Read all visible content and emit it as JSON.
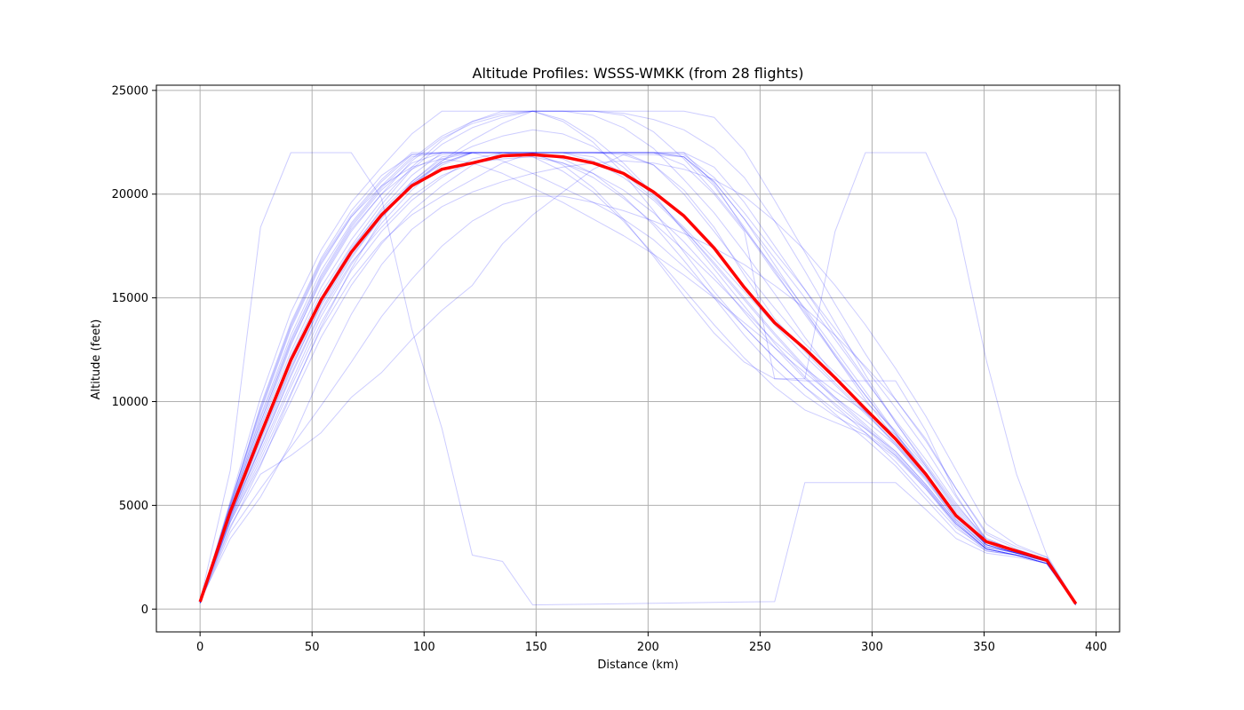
{
  "chart_data": {
    "type": "line",
    "title": "Altitude Profiles: WSSS-WMKK (from 28 flights)",
    "xlabel": "Distance (km)",
    "ylabel": "Altitude (feet)",
    "xlim": [
      -19.5,
      410.5
    ],
    "ylim": [
      -1100,
      25250
    ],
    "xticks": [
      0,
      50,
      100,
      150,
      200,
      250,
      300,
      350,
      400
    ],
    "yticks": [
      0,
      5000,
      10000,
      15000,
      20000,
      25000
    ],
    "grid": true,
    "colors": {
      "flights": "#0000ff",
      "mean": "#ff0000",
      "grid": "#b0b0b0"
    },
    "x": [
      0,
      13.5,
      27,
      40.5,
      54,
      67.5,
      81,
      94.5,
      108,
      121.5,
      135,
      148.5,
      162,
      175.5,
      189,
      202.5,
      216,
      229.5,
      243,
      256.5,
      270,
      283.5,
      297,
      310.5,
      324,
      337.5,
      351,
      364.5,
      378,
      391
    ],
    "mean": [
      350,
      4700,
      8400,
      12000,
      14900,
      17200,
      19000,
      20400,
      21200,
      21500,
      21850,
      21900,
      21800,
      21500,
      21000,
      20100,
      18950,
      17400,
      15500,
      13800,
      12550,
      11150,
      9650,
      8200,
      6500,
      4500,
      3250,
      2800,
      2350,
      250
    ],
    "series": [
      [
        300,
        5000,
        9800,
        13800,
        16900,
        19200,
        20900,
        21900,
        22000,
        22000,
        22000,
        22000,
        22000,
        22000,
        21900,
        21400,
        20200,
        18400,
        16100,
        14000,
        12400,
        10900,
        9500,
        8000,
        6300,
        4300,
        3000,
        2700,
        2400,
        300
      ],
      [
        400,
        4500,
        7800,
        11200,
        14300,
        16700,
        18400,
        19900,
        20900,
        21500,
        21700,
        21800,
        21500,
        21000,
        20200,
        19100,
        17700,
        16100,
        14300,
        12600,
        11100,
        9900,
        8700,
        7400,
        5800,
        4000,
        2800,
        2600,
        2300,
        300
      ],
      [
        300,
        4200,
        7200,
        10400,
        13500,
        15900,
        17700,
        19000,
        19900,
        20700,
        21500,
        22000,
        22000,
        22000,
        22000,
        22000,
        22000,
        20500,
        18300,
        16200,
        14300,
        12300,
        10300,
        8500,
        6600,
        4600,
        3100,
        2700,
        2300,
        200
      ],
      [
        300,
        5200,
        10200,
        14300,
        17300,
        19600,
        21300,
        22900,
        24000,
        24000,
        24000,
        24000,
        24000,
        24000,
        23900,
        23600,
        23100,
        22200,
        20800,
        18700,
        16300,
        13800,
        11300,
        9000,
        7000,
        5000,
        3400,
        2800,
        2400,
        300
      ],
      [
        400,
        4800,
        9000,
        12800,
        15800,
        18200,
        20000,
        21600,
        22700,
        23400,
        23800,
        24000,
        24000,
        23800,
        23200,
        22200,
        20700,
        19100,
        17200,
        15200,
        13100,
        11200,
        9500,
        7900,
        6200,
        4300,
        3000,
        2700,
        2300,
        200
      ],
      [
        300,
        4600,
        8500,
        12200,
        15200,
        17500,
        19500,
        21200,
        22400,
        23200,
        23700,
        24000,
        23600,
        22700,
        21500,
        20000,
        18200,
        16400,
        14600,
        12800,
        11200,
        9800,
        8500,
        7100,
        5500,
        3900,
        2900,
        2600,
        2200,
        300
      ],
      [
        350,
        4300,
        7600,
        10900,
        14100,
        16600,
        18600,
        20200,
        21400,
        22000,
        22000,
        22000,
        22000,
        22000,
        22000,
        22000,
        21800,
        20600,
        18800,
        16900,
        15000,
        13000,
        11000,
        9100,
        7200,
        5100,
        3300,
        2800,
        2400,
        250
      ],
      [
        300,
        5100,
        9700,
        13700,
        16800,
        19000,
        20700,
        22000,
        22000,
        22000,
        22000,
        22000,
        22000,
        22000,
        22000,
        21400,
        20000,
        18200,
        16300,
        14500,
        12800,
        11400,
        10000,
        8600,
        6900,
        4900,
        3300,
        2800,
        2400,
        300
      ],
      [
        400,
        4700,
        8700,
        12400,
        15500,
        17800,
        19700,
        21300,
        22600,
        23500,
        24000,
        24000,
        24000,
        24000,
        24000,
        24000,
        24000,
        23700,
        22100,
        19700,
        17200,
        14700,
        12300,
        10100,
        8100,
        5800,
        3700,
        3000,
        2500,
        300
      ],
      [
        300,
        4400,
        7900,
        11500,
        14700,
        17100,
        19000,
        20500,
        21600,
        22300,
        22800,
        23100,
        22900,
        22300,
        21300,
        19900,
        18300,
        16600,
        14900,
        13200,
        11600,
        10100,
        8800,
        7500,
        5900,
        4100,
        2900,
        2600,
        2200,
        200
      ],
      [
        350,
        4900,
        9300,
        13200,
        16300,
        18600,
        20400,
        21800,
        22000,
        22000,
        22000,
        22000,
        21700,
        21000,
        19900,
        18500,
        16800,
        15000,
        13200,
        11600,
        10300,
        9300,
        8500,
        7400,
        5900,
        4100,
        2900,
        2600,
        2200,
        300
      ],
      [
        300,
        4600,
        8300,
        11900,
        14900,
        17300,
        19300,
        20900,
        22000,
        22000,
        22000,
        22000,
        22000,
        21800,
        21000,
        19800,
        18400,
        16900,
        15300,
        13700,
        12200,
        10800,
        9400,
        8000,
        6400,
        4500,
        3100,
        2700,
        2300,
        300
      ],
      [
        400,
        4500,
        8100,
        11600,
        14600,
        17000,
        18900,
        20400,
        21600,
        22600,
        23400,
        24000,
        24000,
        24000,
        23800,
        23000,
        21700,
        20100,
        18300,
        16400,
        14500,
        12500,
        10500,
        8500,
        6500,
        4500,
        3100,
        2700,
        2300,
        200
      ],
      [
        300,
        5000,
        9500,
        13500,
        16600,
        18900,
        20600,
        21900,
        22000,
        22000,
        22000,
        22000,
        21400,
        20300,
        18800,
        17000,
        15100,
        13300,
        11900,
        11100,
        11000,
        11000,
        11000,
        11000,
        8600,
        5500,
        3300,
        2800,
        2400,
        300
      ],
      [
        350,
        4700,
        8800,
        12700,
        15900,
        18300,
        20000,
        21200,
        21900,
        22000,
        21600,
        21000,
        20300,
        19600,
        18800,
        17800,
        16500,
        15100,
        13600,
        12100,
        10700,
        9600,
        8700,
        7600,
        6000,
        4200,
        2900,
        2600,
        2200,
        250
      ],
      [
        300,
        4300,
        7400,
        10700,
        13800,
        16300,
        18200,
        19700,
        20800,
        21700,
        22000,
        22000,
        22000,
        22000,
        22000,
        22000,
        21800,
        20400,
        18400,
        16300,
        14200,
        12200,
        10300,
        8400,
        6500,
        4500,
        3100,
        2700,
        2300,
        300
      ],
      [
        400,
        4900,
        9200,
        13000,
        16100,
        18500,
        20300,
        21700,
        22800,
        23500,
        23900,
        24000,
        23500,
        22500,
        21000,
        19200,
        17200,
        15300,
        13600,
        12100,
        10700,
        9400,
        8200,
        6900,
        5300,
        3700,
        2800,
        2600,
        2200,
        200
      ],
      [
        300,
        4600,
        8400,
        12000,
        15000,
        17400,
        19200,
        20600,
        21700,
        22000,
        22000,
        21800,
        21100,
        20100,
        18700,
        17100,
        15400,
        13700,
        12100,
        10700,
        9600,
        9000,
        8400,
        7300,
        5800,
        4100,
        2900,
        2600,
        2200,
        300
      ],
      [
        350,
        4400,
        7800,
        11300,
        14400,
        16900,
        18900,
        20400,
        21500,
        22000,
        22000,
        22000,
        22000,
        22000,
        22000,
        22000,
        21900,
        20800,
        19100,
        17200,
        15400,
        13500,
        11600,
        9700,
        7700,
        5400,
        3400,
        2800,
        2400,
        300
      ],
      [
        300,
        4800,
        9000,
        12900,
        16000,
        18400,
        20200,
        21500,
        22000,
        22000,
        22000,
        22000,
        22000,
        21600,
        20800,
        19700,
        18300,
        16700,
        15000,
        13300,
        11700,
        10200,
        8900,
        7600,
        6000,
        4200,
        2900,
        2600,
        2200,
        200
      ],
      [
        400,
        4200,
        7000,
        10000,
        13100,
        15600,
        17600,
        19200,
        20400,
        21400,
        22000,
        22000,
        22000,
        22000,
        22000,
        22000,
        22000,
        21300,
        19600,
        17500,
        15400,
        13200,
        11100,
        9000,
        6900,
        4800,
        3200,
        2700,
        2300,
        300
      ],
      [
        300,
        5100,
        9600,
        13600,
        16700,
        18900,
        20400,
        21300,
        21700,
        21500,
        21000,
        20300,
        19600,
        18800,
        18000,
        17100,
        16100,
        15000,
        13800,
        12600,
        11400,
        10200,
        9100,
        7900,
        6300,
        4400,
        3000,
        2700,
        2300,
        300
      ],
      [
        350,
        4000,
        6500,
        7400,
        8500,
        10200,
        11400,
        13000,
        14400,
        15600,
        17600,
        19000,
        20100,
        21200,
        21900,
        21900,
        21800,
        20600,
        18800,
        16600,
        14400,
        12200,
        10100,
        8200,
        6400,
        4500,
        3100,
        2700,
        2300,
        250
      ],
      [
        300,
        3700,
        5800,
        7800,
        9800,
        11900,
        14100,
        15900,
        17500,
        18700,
        19500,
        19900,
        19900,
        19600,
        19200,
        18700,
        18100,
        17400,
        16600,
        15600,
        14500,
        13200,
        11700,
        10100,
        8200,
        5800,
        3600,
        2900,
        2400,
        300
      ],
      [
        400,
        3400,
        5400,
        8000,
        11300,
        14200,
        16600,
        18300,
        19400,
        20100,
        20600,
        21000,
        21300,
        21500,
        21600,
        21500,
        21200,
        20700,
        19900,
        18700,
        17300,
        15600,
        13700,
        11600,
        9300,
        6700,
        4100,
        3100,
        2500,
        300
      ],
      [
        300,
        3900,
        6900,
        10300,
        13600,
        16400,
        18800,
        20600,
        21800,
        22000,
        22000,
        21900,
        21500,
        20800,
        19800,
        18600,
        17300,
        15900,
        14400,
        12900,
        11600,
        10500,
        9500,
        8400,
        6800,
        4700,
        3100,
        2700,
        2300,
        300
      ],
      [
        400,
        6700,
        18400,
        22000,
        22000,
        22000,
        19800,
        13500,
        8700,
        2600,
        2300,
        200,
        220,
        240,
        260,
        280,
        300,
        320,
        340,
        360,
        6100,
        6100,
        6100,
        6100,
        4800,
        3400,
        2700,
        2500,
        2200,
        300
      ],
      [
        300,
        4500,
        8200,
        11700,
        14800,
        17200,
        19100,
        20500,
        21500,
        22000,
        22000,
        22000,
        22000,
        22000,
        22000,
        22000,
        21400,
        20000,
        18200,
        11100,
        11100,
        18200,
        22000,
        22000,
        22000,
        18800,
        12000,
        6500,
        2600,
        300
      ]
    ]
  }
}
